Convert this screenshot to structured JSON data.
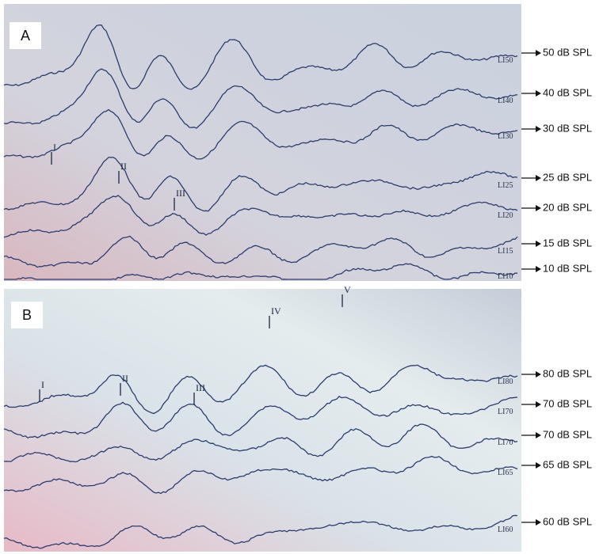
{
  "panels": [
    {
      "label": "A",
      "traces": [
        {
          "screen_label": "LI50",
          "side_label": "50 dB  SPL"
        },
        {
          "screen_label": "LI40",
          "side_label": "40 dB SPL"
        },
        {
          "screen_label": "LI30",
          "side_label": "30 dB SPL"
        },
        {
          "screen_label": "LI25",
          "side_label": "25 dB SPL"
        },
        {
          "screen_label": "LI20",
          "side_label": "20 dB SPL"
        },
        {
          "screen_label": "LI15",
          "side_label": "15 dB SPL"
        },
        {
          "screen_label": "LI10",
          "side_label": "10 dB SPL"
        }
      ],
      "wave_labels": [
        "I",
        "II",
        "III"
      ]
    },
    {
      "label": "B",
      "traces": [
        {
          "screen_label": "LI80",
          "side_label": "80 dB SPL"
        },
        {
          "screen_label": "LI70",
          "side_label": "70 dB SPL"
        },
        {
          "screen_label": "LI70",
          "side_label": "70 dB SPL"
        },
        {
          "screen_label": "LI65",
          "side_label": "65 dB SPL"
        },
        {
          "screen_label": "LI60",
          "side_label": "60 dB SPL"
        }
      ],
      "wave_labels": [
        "I",
        "II",
        "III",
        "IV",
        "V"
      ]
    }
  ]
}
